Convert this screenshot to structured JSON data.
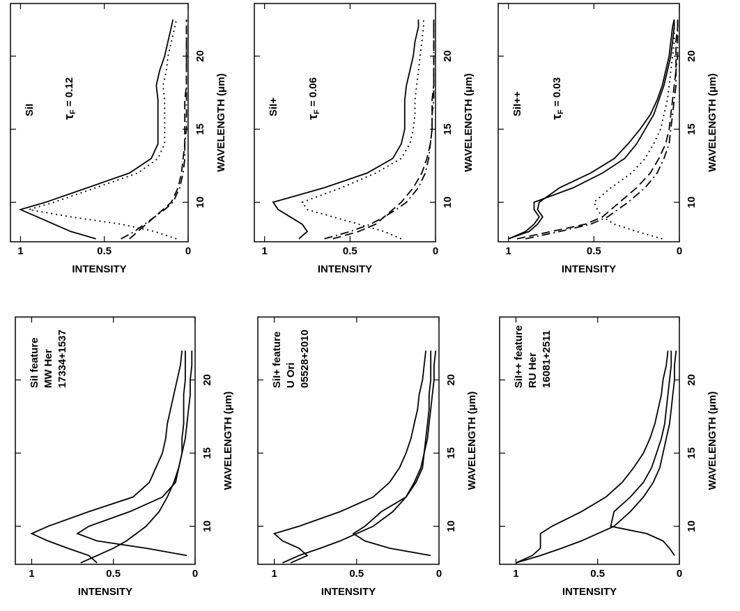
{
  "chart_data": [
    {
      "type": "line",
      "annotations": [
        "SiI feature",
        "MW Her",
        "17334+1537"
      ],
      "xlabel": "WAVELENGTH (μm)",
      "ylabel": "INTENSITY",
      "xlim": [
        7.4,
        24.3
      ],
      "ylim": [
        0,
        1.1
      ],
      "xticks": [
        10,
        15,
        20
      ],
      "yticks": [
        0,
        0.5,
        1
      ],
      "x": [
        7.5,
        8,
        8.5,
        9,
        9.5,
        10,
        11,
        12,
        13,
        14,
        15,
        16,
        17,
        18,
        19,
        20,
        21,
        22
      ],
      "series": [
        {
          "color": "#000000",
          "style": "solid",
          "values": [
            0.6,
            0.65,
            0.78,
            0.9,
            1.0,
            0.9,
            0.65,
            0.38,
            0.28,
            0.24,
            0.2,
            0.18,
            0.17,
            0.15,
            0.13,
            0.11,
            0.09,
            0.08
          ]
        },
        {
          "color": "#000000",
          "style": "solid",
          "values": [
            null,
            0.05,
            0.3,
            0.6,
            0.72,
            0.65,
            0.4,
            0.2,
            0.12,
            0.1,
            0.08,
            0.08,
            0.07,
            0.07,
            0.07,
            0.06,
            0.06,
            0.06
          ]
        },
        {
          "color": "#000000",
          "style": "solid",
          "values": [
            0.7,
            0.6,
            0.5,
            0.42,
            0.36,
            0.3,
            0.22,
            0.17,
            0.13,
            0.1,
            0.08,
            0.06,
            0.05,
            0.04,
            0.03,
            0.03,
            0.02,
            0.02
          ]
        }
      ]
    },
    {
      "type": "line",
      "annotations": [
        "SiI"
      ],
      "tau": {
        "symbol": "τ",
        "sub": "F",
        "rest": " = 0.12"
      },
      "xlabel": "WAVELENGTH (μm)",
      "ylabel": "INTENSITY",
      "xlim": [
        7.3,
        23.6
      ],
      "ylim": [
        0,
        1.06
      ],
      "xticks": [
        10,
        15,
        20
      ],
      "yticks": [
        0,
        0.5,
        1
      ],
      "x": [
        7.5,
        8,
        8.5,
        9,
        9.5,
        10,
        11,
        12,
        13,
        14,
        15,
        16,
        17,
        18,
        19,
        20,
        21,
        22,
        22.5
      ],
      "series": [
        {
          "color": "#000000",
          "style": "solid",
          "values": [
            0.55,
            0.7,
            0.8,
            0.9,
            1.0,
            0.85,
            0.6,
            0.35,
            0.22,
            0.18,
            0.18,
            0.18,
            0.18,
            0.19,
            0.17,
            0.14,
            0.12,
            0.1,
            0.09
          ]
        },
        {
          "color": "#000000",
          "style": "dotted",
          "values": [
            0.07,
            0.2,
            0.4,
            0.7,
            0.95,
            0.8,
            0.55,
            0.3,
            0.18,
            0.14,
            0.14,
            0.14,
            0.14,
            0.15,
            0.13,
            0.12,
            0.1,
            0.08,
            0.07
          ]
        },
        {
          "color": "#000000",
          "style": "dashed",
          "values": [
            0.35,
            0.3,
            0.25,
            0.2,
            0.15,
            0.1,
            0.06,
            0.04,
            0.03,
            0.02,
            0.02,
            0.02,
            0.02,
            0.01,
            0.01,
            0.01,
            0.01,
            0.01,
            0.01
          ]
        },
        {
          "color": "#000000",
          "style": "dashdot",
          "values": [
            0.4,
            0.32,
            0.26,
            0.2,
            0.14,
            0.09,
            0.05,
            0.03,
            0.02,
            0.02,
            0.01,
            0.01,
            0.01,
            0.01,
            0.01,
            0.01,
            0.01,
            0.01,
            0.01
          ]
        }
      ]
    },
    {
      "type": "line",
      "annotations": [
        "SiI+ feature",
        "U Ori",
        "05528+2010"
      ],
      "xlabel": "WAVELENGTH (μm)",
      "ylabel": "INTENSITY",
      "xlim": [
        7.4,
        24.3
      ],
      "ylim": [
        0,
        1.1
      ],
      "xticks": [
        10,
        15,
        20
      ],
      "yticks": [
        0,
        0.5,
        1
      ],
      "x": [
        7.5,
        8,
        8.5,
        9,
        9.5,
        10,
        11,
        12,
        13,
        14,
        15,
        16,
        17,
        18,
        19,
        20,
        21,
        22
      ],
      "series": [
        {
          "color": "#000000",
          "style": "solid",
          "values": [
            0.9,
            0.8,
            0.85,
            0.95,
            1.0,
            0.85,
            0.6,
            0.4,
            0.3,
            0.24,
            0.2,
            0.17,
            0.15,
            0.13,
            0.12,
            0.1,
            0.09,
            0.08
          ]
        },
        {
          "color": "#000000",
          "style": "solid",
          "values": [
            null,
            0.05,
            0.3,
            0.45,
            0.52,
            0.45,
            0.35,
            0.2,
            0.14,
            0.1,
            0.09,
            0.08,
            0.07,
            0.06,
            0.06,
            0.05,
            0.05,
            0.05
          ]
        },
        {
          "color": "#000000",
          "style": "solid",
          "values": [
            0.95,
            0.85,
            0.72,
            0.6,
            0.5,
            0.4,
            0.28,
            0.2,
            0.15,
            0.11,
            0.09,
            0.07,
            0.06,
            0.05,
            0.04,
            0.03,
            0.03,
            0.02
          ]
        }
      ]
    },
    {
      "type": "line",
      "annotations": [
        "SiI+"
      ],
      "tau": {
        "symbol": "τ",
        "sub": "F",
        "rest": " = 0.06"
      },
      "xlabel": "WAVELENGTH (μm)",
      "ylabel": "INTENSITY",
      "xlim": [
        7.3,
        23.6
      ],
      "ylim": [
        0,
        1.06
      ],
      "xticks": [
        10,
        15,
        20
      ],
      "yticks": [
        0,
        0.5,
        1
      ],
      "x": [
        7.5,
        8,
        8.5,
        9,
        9.5,
        10,
        11,
        12,
        13,
        14,
        15,
        16,
        17,
        18,
        19,
        20,
        21,
        22,
        22.5
      ],
      "series": [
        {
          "color": "#000000",
          "style": "solid",
          "values": [
            0.8,
            0.75,
            0.78,
            0.85,
            0.92,
            0.95,
            0.65,
            0.4,
            0.25,
            0.2,
            0.18,
            0.18,
            0.18,
            0.17,
            0.15,
            0.13,
            0.12,
            0.1,
            0.1
          ]
        },
        {
          "color": "#000000",
          "style": "dotted",
          "values": [
            0.2,
            0.3,
            0.45,
            0.6,
            0.75,
            0.78,
            0.55,
            0.35,
            0.2,
            0.15,
            0.13,
            0.12,
            0.12,
            0.11,
            0.1,
            0.09,
            0.08,
            0.07,
            0.07
          ]
        },
        {
          "color": "#000000",
          "style": "dashed",
          "values": [
            0.6,
            0.45,
            0.35,
            0.3,
            0.25,
            0.2,
            0.13,
            0.08,
            0.05,
            0.03,
            0.02,
            0.02,
            0.02,
            0.01,
            0.01,
            0.01,
            0.01,
            0.01,
            0.01
          ]
        },
        {
          "color": "#000000",
          "style": "dashdot",
          "values": [
            0.65,
            0.5,
            0.38,
            0.3,
            0.23,
            0.17,
            0.1,
            0.06,
            0.04,
            0.03,
            0.02,
            0.02,
            0.01,
            0.01,
            0.01,
            0.01,
            0.01,
            0.01,
            0.01
          ]
        }
      ]
    },
    {
      "type": "line",
      "annotations": [
        "SiI++ feature",
        "RU Her",
        "16081+2511"
      ],
      "xlabel": "WAVELENGTH (μm)",
      "ylabel": "INTENSITY",
      "xlim": [
        7.4,
        24.3
      ],
      "ylim": [
        0,
        1.1
      ],
      "xticks": [
        10,
        15,
        20
      ],
      "yticks": [
        0,
        0.5,
        1
      ],
      "x": [
        7.5,
        8,
        8.5,
        9,
        9.5,
        10,
        11,
        12,
        13,
        14,
        15,
        16,
        17,
        18,
        19,
        20,
        21,
        22
      ],
      "series": [
        {
          "color": "#000000",
          "style": "solid",
          "values": [
            1.0,
            0.9,
            0.85,
            0.85,
            0.85,
            0.78,
            0.6,
            0.45,
            0.35,
            0.28,
            0.22,
            0.18,
            0.15,
            0.13,
            0.11,
            0.1,
            0.08,
            0.07
          ]
        },
        {
          "color": "#000000",
          "style": "solid",
          "values": [
            null,
            0.03,
            0.06,
            0.1,
            0.2,
            0.42,
            0.4,
            0.3,
            0.22,
            0.17,
            0.14,
            0.11,
            0.09,
            0.08,
            0.07,
            0.06,
            0.05,
            0.05
          ]
        },
        {
          "color": "#000000",
          "style": "solid",
          "values": [
            1.0,
            0.85,
            0.72,
            0.6,
            0.5,
            0.4,
            0.3,
            0.22,
            0.16,
            0.12,
            0.1,
            0.08,
            0.06,
            0.05,
            0.04,
            0.03,
            0.03,
            0.02
          ]
        }
      ]
    },
    {
      "type": "line",
      "annotations": [
        "SiI++"
      ],
      "tau": {
        "symbol": "τ",
        "sub": "F",
        "rest": " = 0.03"
      },
      "xlabel": "WAVELENGTH (μm)",
      "ylabel": "INTENSITY",
      "xlim": [
        7.3,
        23.6
      ],
      "ylim": [
        0,
        1.06
      ],
      "xticks": [
        10,
        15,
        20
      ],
      "yticks": [
        0,
        0.5,
        1
      ],
      "x": [
        7.5,
        8,
        8.5,
        9,
        9.5,
        10,
        11,
        12,
        13,
        14,
        15,
        16,
        17,
        18,
        19,
        20,
        21,
        22,
        22.5
      ],
      "series": [
        {
          "color": "#000000",
          "style": "solid",
          "values": [
            1.0,
            0.9,
            0.85,
            0.82,
            0.85,
            0.85,
            0.62,
            0.45,
            0.32,
            0.25,
            0.2,
            0.15,
            0.12,
            0.09,
            0.07,
            0.05,
            0.04,
            0.03,
            0.03
          ]
        },
        {
          "color": "#000000",
          "style": "solid",
          "values": [
            1.0,
            0.88,
            0.83,
            0.8,
            0.83,
            0.82,
            0.7,
            0.52,
            0.38,
            0.3,
            0.23,
            0.17,
            0.13,
            0.1,
            0.08,
            0.06,
            0.05,
            0.04,
            0.03
          ]
        },
        {
          "color": "#000000",
          "style": "dotted",
          "values": [
            0.1,
            0.25,
            0.38,
            0.45,
            0.48,
            0.5,
            0.4,
            0.28,
            0.2,
            0.15,
            0.11,
            0.09,
            0.07,
            0.06,
            0.05,
            0.04,
            0.03,
            0.03,
            0.03
          ]
        },
        {
          "color": "#000000",
          "style": "dashed",
          "values": [
            0.95,
            0.75,
            0.55,
            0.45,
            0.4,
            0.35,
            0.25,
            0.17,
            0.12,
            0.08,
            0.06,
            0.05,
            0.04,
            0.03,
            0.02,
            0.02,
            0.02,
            0.01,
            0.01
          ]
        },
        {
          "color": "#000000",
          "style": "dashdot",
          "values": [
            0.9,
            0.7,
            0.52,
            0.42,
            0.36,
            0.3,
            0.2,
            0.13,
            0.09,
            0.06,
            0.05,
            0.04,
            0.03,
            0.02,
            0.02,
            0.01,
            0.01,
            0.01,
            0.01
          ]
        }
      ]
    }
  ]
}
